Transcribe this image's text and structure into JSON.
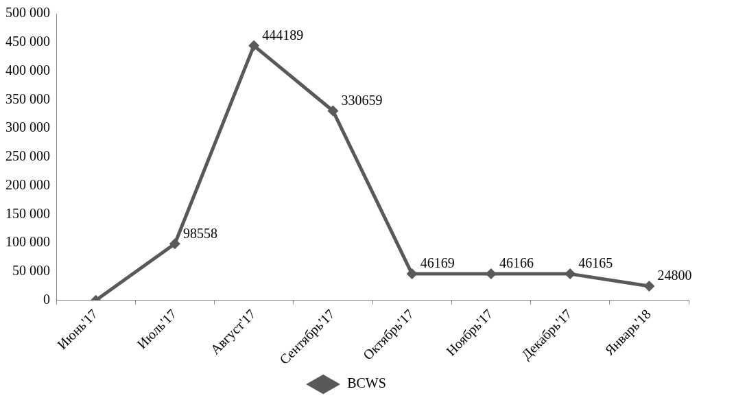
{
  "chart_data": {
    "type": "line",
    "categories": [
      "Июнь'17",
      "Июль'17",
      "Август'17",
      "Сентябрь'17",
      "Октябрь'17",
      "Ноябрь'17",
      "Декабрь'17",
      "Январь'18"
    ],
    "series": [
      {
        "name": "BCWS",
        "color": "#595959",
        "values": [
          0,
          98558,
          444189,
          330659,
          46169,
          46166,
          46165,
          24800
        ],
        "value_labels": [
          null,
          "98558",
          "444189",
          "330659",
          "46169",
          "46166",
          "46165",
          "24800"
        ]
      }
    ],
    "ylim": [
      0,
      500000
    ],
    "yticks": [
      {
        "value": 0,
        "label": "0"
      },
      {
        "value": 50000,
        "label": "50 000"
      },
      {
        "value": 100000,
        "label": "100 000"
      },
      {
        "value": 150000,
        "label": "150 000"
      },
      {
        "value": 200000,
        "label": "200 000"
      },
      {
        "value": 250000,
        "label": "250 000"
      },
      {
        "value": 300000,
        "label": "300 000"
      },
      {
        "value": 350000,
        "label": "350 000"
      },
      {
        "value": 400000,
        "label": "400 000"
      },
      {
        "value": 450000,
        "label": "450 000"
      },
      {
        "value": 500000,
        "label": "500 000"
      }
    ],
    "legend": "bottom",
    "marker": "diamond",
    "line_style": "solid"
  }
}
